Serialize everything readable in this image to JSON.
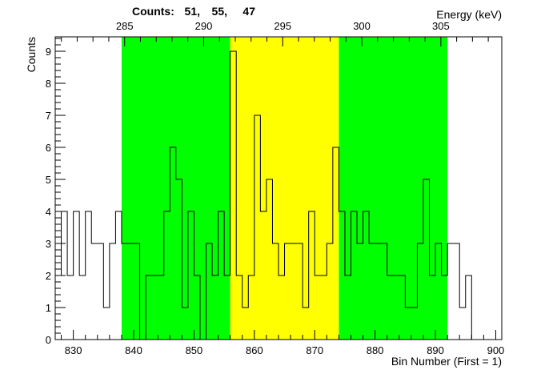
{
  "chart_data": {
    "type": "histogram",
    "x_axis": {
      "label": "Bin Number (First = 1)",
      "range": [
        827,
        901
      ],
      "major_ticks": [
        830,
        840,
        850,
        860,
        870,
        880,
        890,
        900
      ],
      "tick_labels": [
        "830",
        "840",
        "850",
        "860",
        "870",
        "880",
        "890",
        "900"
      ]
    },
    "y_axis": {
      "label": "Counts",
      "range": [
        0,
        9.45
      ],
      "major_ticks": [
        0,
        1,
        2,
        3,
        4,
        5,
        6,
        7,
        8,
        9
      ],
      "tick_labels": [
        "0",
        "1",
        "2",
        "3",
        "4",
        "5",
        "6",
        "7",
        "8",
        "9"
      ]
    },
    "top_axis": {
      "label": "Energy (keV)",
      "tick_values_bin": [
        825.4,
        838.5,
        851.6,
        864.7,
        877.8,
        890.9
      ],
      "tick_labels": [
        "285",
        "290",
        "295",
        "300",
        "305"
      ],
      "tick_labels_bin": [
        838.5,
        851.6,
        864.7,
        877.8,
        890.9
      ]
    },
    "regions": [
      {
        "name": "left-background",
        "from": 838,
        "to": 856,
        "color": "#00ff00"
      },
      {
        "name": "peak",
        "from": 856,
        "to": 874,
        "color": "#ffff00"
      },
      {
        "name": "right-background",
        "from": 874,
        "to": 892,
        "color": "#00ff00"
      }
    ],
    "region_counts_label": "Counts:",
    "region_counts": [
      "51,",
      "55,",
      "47"
    ],
    "bins": {
      "start": 827,
      "width": 1,
      "values": [
        2,
        4,
        2,
        4,
        2,
        4,
        3,
        3,
        1,
        3,
        4,
        3,
        3,
        3,
        0,
        2,
        2,
        2,
        4,
        6,
        5,
        1,
        4,
        2,
        0,
        3,
        2,
        4,
        2,
        9,
        2,
        1,
        2,
        7,
        4,
        5,
        3,
        2,
        3,
        3,
        3,
        1,
        4,
        2,
        2,
        3,
        6,
        4,
        2,
        4,
        3,
        4,
        3,
        3,
        3,
        2,
        2,
        2,
        1,
        1,
        3,
        5,
        2,
        3,
        2,
        3,
        3,
        1,
        2
      ]
    }
  }
}
